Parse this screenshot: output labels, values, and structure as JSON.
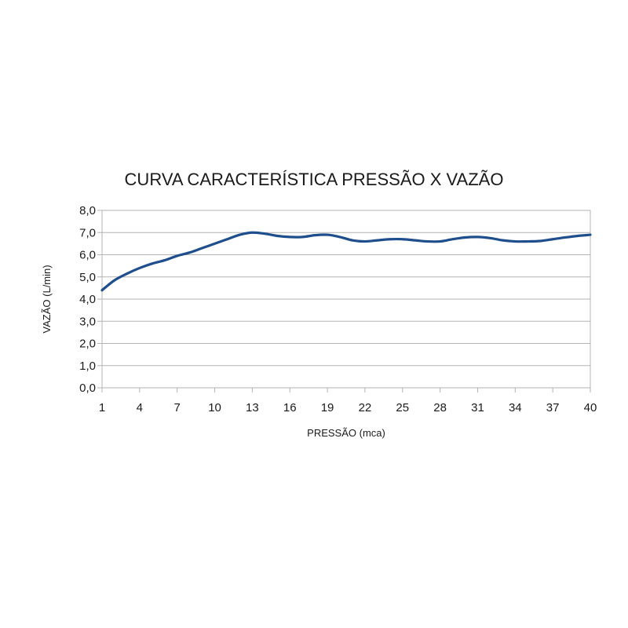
{
  "chart_data": {
    "type": "line",
    "title": "CURVA CARACTERÍSTICA PRESSÃO X VAZÃO",
    "xlabel": "PRESSÃO (mca)",
    "ylabel": "VAZÃO (L/min)",
    "x_tick_labels": [
      "1",
      "4",
      "7",
      "10",
      "13",
      "16",
      "19",
      "22",
      "25",
      "28",
      "31",
      "34",
      "37",
      "40"
    ],
    "y_tick_labels": [
      "0,0",
      "1,0",
      "2,0",
      "3,0",
      "4,0",
      "5,0",
      "6,0",
      "7,0",
      "8,0"
    ],
    "xlim": [
      1,
      40
    ],
    "ylim": [
      0,
      8
    ],
    "grid": true,
    "legend": "none",
    "series": [
      {
        "color": "#1f4e8c",
        "x": [
          1,
          2,
          3,
          4,
          5,
          6,
          7,
          8,
          9,
          10,
          11,
          12,
          13,
          14,
          15,
          16,
          17,
          18,
          19,
          20,
          21,
          22,
          23,
          24,
          25,
          26,
          27,
          28,
          29,
          30,
          31,
          32,
          33,
          34,
          35,
          36,
          37,
          38,
          39,
          40
        ],
        "y": [
          4.4,
          4.85,
          5.15,
          5.4,
          5.6,
          5.75,
          5.95,
          6.1,
          6.3,
          6.5,
          6.7,
          6.9,
          7.0,
          6.95,
          6.85,
          6.8,
          6.8,
          6.88,
          6.9,
          6.8,
          6.65,
          6.6,
          6.65,
          6.7,
          6.7,
          6.65,
          6.6,
          6.6,
          6.7,
          6.78,
          6.8,
          6.75,
          6.65,
          6.6,
          6.6,
          6.62,
          6.7,
          6.78,
          6.85,
          6.9
        ]
      }
    ]
  }
}
